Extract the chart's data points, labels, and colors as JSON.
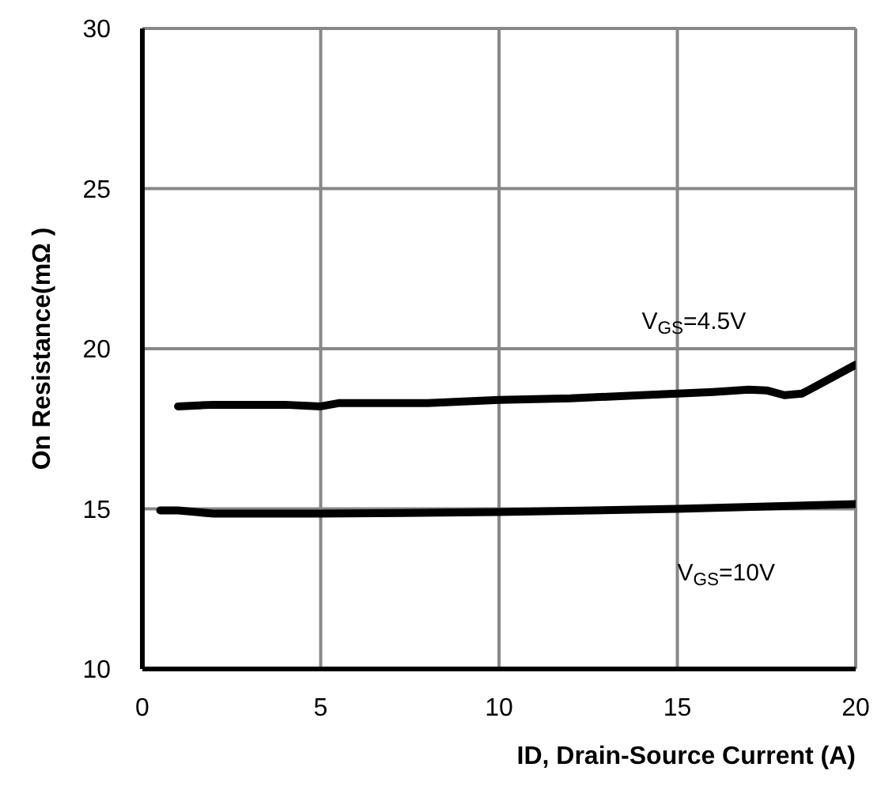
{
  "chart_data": {
    "type": "line",
    "xlabel": "ID, Drain-Source Current (A)",
    "ylabel": "On Resistance(mΩ )",
    "xlim": [
      0,
      20
    ],
    "xticks": [
      0,
      5,
      10,
      15,
      20
    ],
    "ylim": [
      10,
      30
    ],
    "yticks": [
      10,
      15,
      20,
      25,
      30
    ],
    "grid": true,
    "legend": false,
    "marker": "none",
    "line_style": "solid",
    "series": [
      {
        "name": "V$_{GS}$=4.5V",
        "color": "#000000",
        "x": [
          1,
          2,
          4,
          5,
          5.5,
          8,
          10,
          12,
          14,
          16,
          17,
          17.5,
          18,
          18.5,
          19,
          20
        ],
        "values": [
          18.2,
          18.25,
          18.25,
          18.2,
          18.3,
          18.3,
          18.4,
          18.45,
          18.55,
          18.65,
          18.72,
          18.7,
          18.55,
          18.6,
          18.9,
          19.5
        ]
      },
      {
        "name": "V$_{GS}$=10V",
        "color": "#000000",
        "x": [
          0.5,
          1,
          2,
          5,
          10,
          15,
          20
        ],
        "values": [
          14.95,
          14.95,
          14.85,
          14.85,
          14.9,
          15.0,
          15.15
        ]
      }
    ]
  }
}
